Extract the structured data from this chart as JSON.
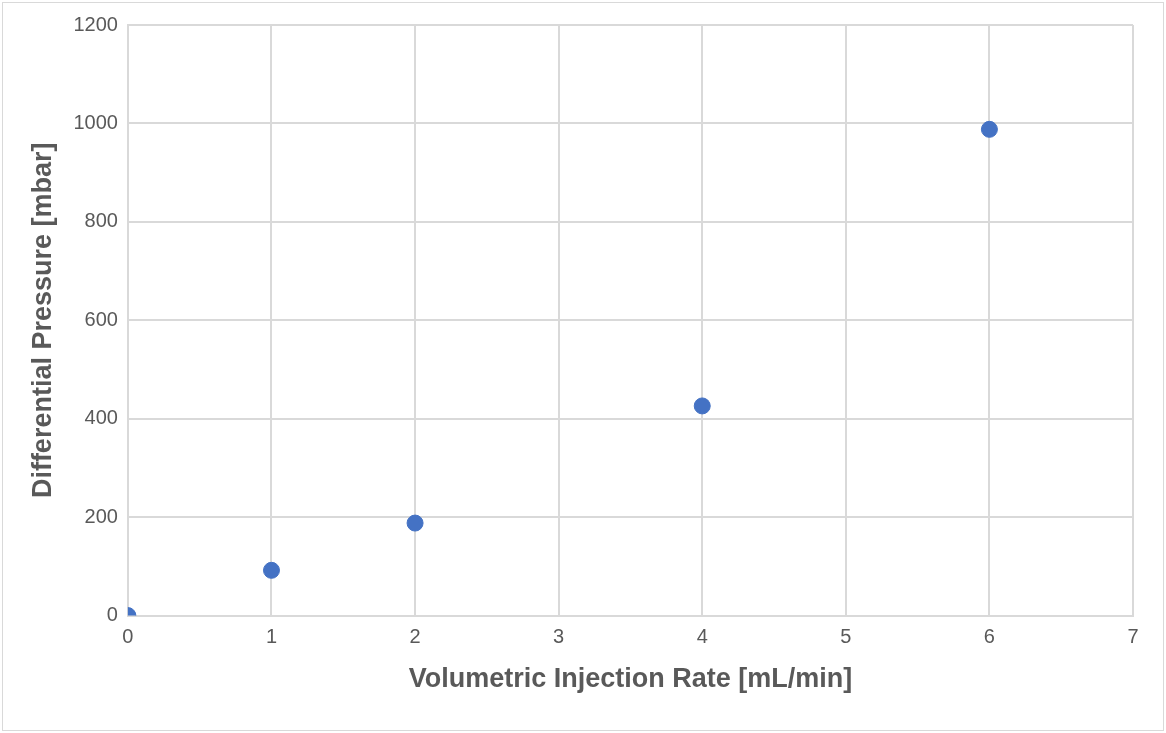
{
  "chart_data": {
    "type": "scatter",
    "xlabel": "Volumetric Injection Rate [mL/min]",
    "ylabel": "Differential Pressure [mbar]",
    "x": [
      0,
      1,
      2,
      4,
      6
    ],
    "series": [
      {
        "color": "#4472c4",
        "values": [
          0,
          92,
          188,
          426,
          988
        ]
      }
    ],
    "xlim": [
      0,
      7
    ],
    "xticks": [
      0,
      1,
      2,
      3,
      4,
      5,
      6,
      7
    ],
    "ylim": [
      0,
      1200
    ],
    "yticks": [
      0,
      200,
      400,
      600,
      800,
      1000,
      1200
    ],
    "grid": true,
    "legend": false,
    "marker": "circle"
  }
}
